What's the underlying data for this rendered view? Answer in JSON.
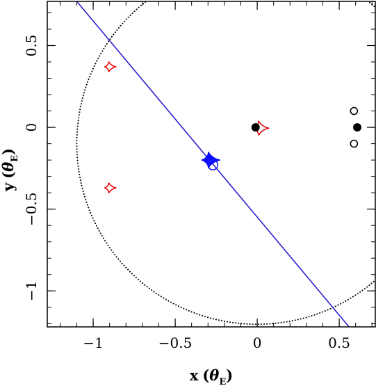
{
  "chart_data": {
    "type": "scatter",
    "xlabel": {
      "main": "x",
      "theta": "θ",
      "sub": "E"
    },
    "ylabel": {
      "main": "y",
      "theta": "θ",
      "sub": "E"
    },
    "xlim": [
      -1.28,
      0.72
    ],
    "ylim": [
      -1.22,
      0.77
    ],
    "x_ticks": [
      {
        "value": -1,
        "label": "−1"
      },
      {
        "value": -0.5,
        "label": "−0.5"
      },
      {
        "value": 0,
        "label": "0"
      },
      {
        "value": 0.5,
        "label": "0.5"
      }
    ],
    "y_ticks": [
      {
        "value": -1,
        "label": "−1"
      },
      {
        "value": -0.5,
        "label": "−0.5"
      },
      {
        "value": 0,
        "label": "0"
      },
      {
        "value": 0.5,
        "label": "0.5"
      }
    ],
    "x_minor_step": 0.1,
    "y_minor_step": 0.1,
    "grid": false,
    "lens_circle": {
      "center": [
        0,
        -0.1
      ],
      "radius": 1.1,
      "style": "dotted",
      "color": "#000000"
    },
    "source_trajectory": {
      "points": [
        [
          -1.1,
          0.77
        ],
        [
          0.56,
          -1.22
        ]
      ],
      "color": "#2a1fd0"
    },
    "filled_points": [
      {
        "x": -0.01,
        "y": 0.0,
        "color": "#000000"
      },
      {
        "x": 0.61,
        "y": 0.0,
        "color": "#000000"
      }
    ],
    "open_points": [
      {
        "x": 0.59,
        "y": 0.1,
        "color": "#000000"
      },
      {
        "x": 0.59,
        "y": -0.1,
        "color": "#000000"
      },
      {
        "x": -0.27,
        "y": -0.23,
        "color": "#1a1aff"
      }
    ],
    "caustics": [
      {
        "x": -0.9,
        "y": 0.37,
        "size": 0.032,
        "color": "#e00000",
        "filled": false
      },
      {
        "x": -0.9,
        "y": -0.37,
        "size": 0.032,
        "color": "#e00000",
        "filled": false
      },
      {
        "x": 0.015,
        "y": -0.005,
        "size": 0.045,
        "color": "#e00000",
        "filled": false
      },
      {
        "x": -0.29,
        "y": -0.2,
        "size": 0.05,
        "color": "#0a0aff",
        "filled": true
      }
    ]
  }
}
